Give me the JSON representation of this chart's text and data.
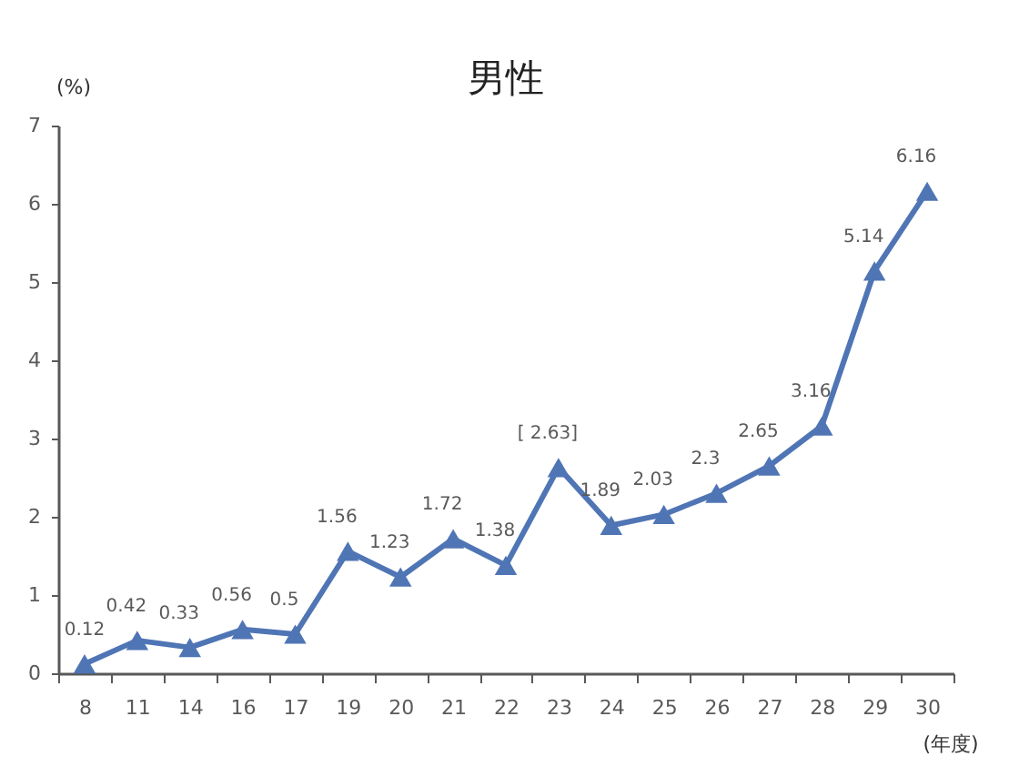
{
  "chart_data": {
    "type": "line",
    "title": "男性",
    "xlabel": "(年度)",
    "ylabel": "(%)",
    "categories": [
      "8",
      "11",
      "14",
      "16",
      "17",
      "19",
      "20",
      "21",
      "22",
      "23",
      "24",
      "25",
      "26",
      "27",
      "28",
      "29",
      "30"
    ],
    "series": [
      {
        "color": "#4f75b5",
        "values": [
          0.12,
          0.42,
          0.33,
          0.56,
          0.5,
          1.56,
          1.23,
          1.72,
          1.38,
          2.63,
          1.89,
          2.03,
          2.3,
          2.65,
          3.16,
          5.14,
          6.16
        ],
        "value_labels": [
          "0.12",
          "0.42",
          "0.33",
          "0.56",
          "0.5",
          "1.56",
          "1.23",
          "1.72",
          "1.38",
          "[ 2.63]",
          "1.89",
          "2.03",
          "2.3",
          "2.65",
          "3.16",
          "5.14",
          "6.16"
        ]
      }
    ],
    "ylim": [
      0,
      7
    ],
    "yticks": [
      0,
      1,
      2,
      3,
      4,
      5,
      6,
      7
    ],
    "grid": false,
    "marker": "triangle",
    "line_style": "solid"
  }
}
